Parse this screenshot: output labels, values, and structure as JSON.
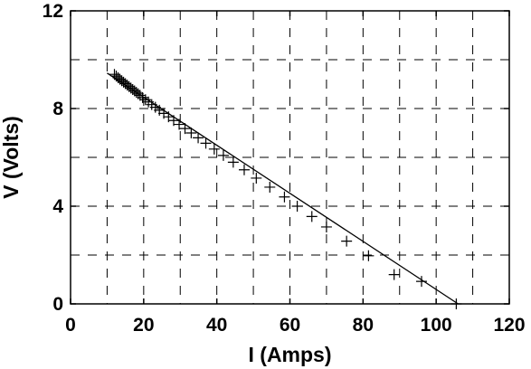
{
  "chart_data": {
    "type": "scatter",
    "title": "",
    "xlabel": "I (Amps)",
    "ylabel": "V (Volts)",
    "xlim": [
      0,
      120
    ],
    "ylim": [
      0,
      12
    ],
    "x_ticks": [
      0,
      20,
      40,
      60,
      80,
      100,
      120
    ],
    "y_ticks": [
      0,
      4,
      8,
      12
    ],
    "x_tick_labels": [
      "0",
      "20",
      "40",
      "60",
      "80",
      "100",
      "120"
    ],
    "y_tick_labels": [
      "0",
      "4",
      "8",
      "12"
    ],
    "grid": {
      "style": "dashed",
      "x_step": 10,
      "y_step": 2
    },
    "legend": "none",
    "series": [
      {
        "marker": "plus",
        "x": [
          12.0,
          12.5,
          13.0,
          13.5,
          14.0,
          14.5,
          15.0,
          15.5,
          16.0,
          16.5,
          17.0,
          17.5,
          18.0,
          18.5,
          19.0,
          19.7,
          20.5,
          21.3,
          22.2,
          23.2,
          24.3,
          25.5,
          26.8,
          28.2,
          29.7,
          31.3,
          33.0,
          34.9,
          37.0,
          39.3,
          41.8,
          44.5,
          47.5,
          50.8,
          54.5,
          58.5,
          62.0,
          66.0,
          70.0,
          75.5,
          81.5,
          88.5,
          96.0,
          105.5
        ],
        "y": [
          9.4,
          9.33,
          9.26,
          9.2,
          9.14,
          9.08,
          9.02,
          8.96,
          8.9,
          8.84,
          8.78,
          8.72,
          8.66,
          8.6,
          8.54,
          8.45,
          8.36,
          8.27,
          8.16,
          8.05,
          7.93,
          7.8,
          7.66,
          7.51,
          7.35,
          7.18,
          7.0,
          6.8,
          6.58,
          6.34,
          6.08,
          5.8,
          5.49,
          5.15,
          4.78,
          4.38,
          4.0,
          3.58,
          3.15,
          2.57,
          1.97,
          1.2,
          0.92,
          0.0
        ]
      },
      {
        "line": true,
        "x": [
          10.0,
          106.0
        ],
        "y": [
          9.45,
          0.0
        ]
      }
    ]
  }
}
